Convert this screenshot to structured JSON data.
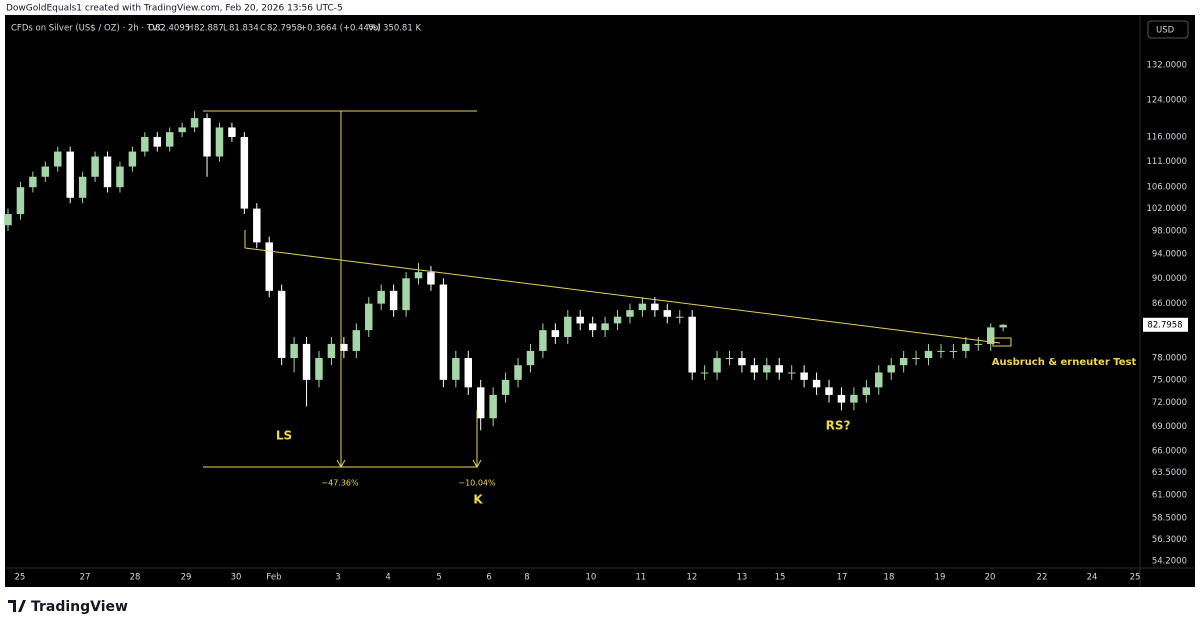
{
  "header": "DowGoldEquals1 created with TradingView.com, Feb 20, 2026 13:56 UTC-5",
  "footer": "TradingView",
  "chart_data": {
    "type": "candlestick",
    "title": "CFDs on Silver (US$ / OZ) · 2h · TVC",
    "legend_labels": {
      "open": "O",
      "high": "H",
      "low": "L",
      "close": "C",
      "volume": "Vol"
    },
    "change": "+0.3664 (+0.44%)",
    "volume": "350.81 K",
    "currency": "USD",
    "up_color": "#a5d6a7",
    "down_color": "#ffffff",
    "log_scale": true,
    "grid": false,
    "x": [
      0,
      1,
      2,
      3,
      4,
      5,
      6,
      7,
      8,
      9,
      10,
      11,
      12,
      13,
      14,
      15,
      16,
      17,
      18,
      19,
      20,
      21,
      22,
      23,
      24,
      25,
      26,
      27,
      28,
      29,
      30,
      31,
      32,
      33,
      34,
      35,
      36,
      37,
      38,
      39,
      40,
      41,
      42,
      43,
      44,
      45,
      46,
      47,
      48,
      49,
      50,
      51,
      52,
      53,
      54,
      55,
      56,
      57,
      58,
      59,
      60,
      61,
      62,
      63,
      64,
      65,
      66,
      67,
      68,
      69,
      70,
      71,
      72,
      73,
      74,
      75,
      76,
      77,
      78,
      79,
      80
    ],
    "open": [
      99,
      101,
      106,
      108,
      110,
      113,
      104,
      108,
      112,
      106,
      110,
      113,
      116,
      114,
      117,
      118,
      120,
      112,
      118,
      116,
      102,
      96,
      88,
      78,
      80,
      75,
      78,
      80,
      79,
      82,
      86,
      88,
      85,
      90,
      91,
      89,
      75,
      78,
      74,
      70,
      73,
      75,
      77,
      79,
      82,
      81,
      84,
      83,
      82,
      83,
      84,
      85,
      86,
      85,
      84,
      84,
      76,
      76,
      78,
      78,
      77,
      76,
      77,
      76,
      76,
      75,
      74,
      73,
      72,
      73,
      74,
      76,
      77,
      78,
      78,
      79,
      79,
      79,
      80,
      80,
      82.4095
    ],
    "high": [
      102,
      107,
      109,
      111,
      114,
      114,
      109,
      113,
      113,
      111,
      114,
      117,
      117,
      118,
      119,
      121.5,
      121,
      119,
      119,
      117,
      103,
      97,
      89,
      81,
      81,
      79,
      81,
      81,
      83,
      87,
      89,
      89,
      91,
      92.5,
      92,
      90,
      79,
      79,
      75,
      74,
      76,
      78,
      80,
      83,
      83,
      85,
      85,
      84,
      84,
      85,
      86,
      87,
      87,
      86,
      85,
      85,
      77,
      79,
      79,
      79,
      78,
      78,
      78,
      77,
      77,
      76,
      75,
      74,
      74,
      75,
      77,
      78,
      79,
      79,
      80,
      80,
      80,
      81,
      81,
      83,
      82.887
    ],
    "low": [
      98,
      100,
      105,
      107,
      109,
      103,
      103,
      107,
      105,
      105,
      109,
      112,
      113,
      113,
      116,
      117,
      108,
      111,
      115,
      101,
      95,
      87,
      77,
      76,
      71.5,
      74,
      77,
      78,
      78,
      81,
      85,
      84,
      84,
      89,
      88,
      74,
      74,
      73,
      68.5,
      69,
      72,
      74,
      76,
      78,
      80,
      80,
      82,
      81,
      81,
      82,
      83,
      84,
      84,
      83,
      83,
      75,
      75,
      75,
      77,
      76,
      75,
      75,
      75,
      75,
      74,
      73,
      72,
      71,
      71,
      72,
      73,
      75,
      76,
      77,
      77,
      78,
      78,
      78,
      79,
      79,
      81.834
    ],
    "close": [
      101,
      106,
      108,
      110,
      113,
      104,
      108,
      112,
      106,
      110,
      113,
      116,
      114,
      117,
      118,
      120,
      112,
      118,
      116,
      102,
      96,
      88,
      78,
      80,
      75,
      78,
      80,
      79,
      82,
      86,
      88,
      85,
      90,
      91,
      89,
      75,
      78,
      74,
      70,
      73,
      75,
      77,
      79,
      82,
      81,
      84,
      83,
      82,
      83,
      84,
      85,
      86,
      85,
      84,
      84,
      76,
      76,
      78,
      78,
      77,
      76,
      77,
      76,
      76,
      75,
      74,
      73,
      72,
      73,
      74,
      76,
      77,
      78,
      78,
      79,
      79,
      79,
      80,
      80,
      82.4095,
      82.7958
    ],
    "xlim": [
      0,
      91
    ],
    "xticks": [
      {
        "value": 0.96,
        "label": "25"
      },
      {
        "value": 6.19,
        "label": "27"
      },
      {
        "value": 10.21,
        "label": "28"
      },
      {
        "value": 14.31,
        "label": "29"
      },
      {
        "value": 18.33,
        "label": "30"
      },
      {
        "value": 21.38,
        "label": "Feb"
      },
      {
        "value": 26.53,
        "label": "3"
      },
      {
        "value": 30.55,
        "label": "4"
      },
      {
        "value": 34.65,
        "label": "5"
      },
      {
        "value": 38.67,
        "label": "6"
      },
      {
        "value": 41.72,
        "label": "8"
      },
      {
        "value": 46.86,
        "label": "10"
      },
      {
        "value": 50.88,
        "label": "11"
      },
      {
        "value": 54.98,
        "label": "12"
      },
      {
        "value": 59.0,
        "label": "13"
      },
      {
        "value": 62.06,
        "label": "15"
      },
      {
        "value": 67.04,
        "label": "17"
      },
      {
        "value": 70.82,
        "label": "18"
      },
      {
        "value": 74.92,
        "label": "19"
      },
      {
        "value": 78.94,
        "label": "20"
      },
      {
        "value": 83.12,
        "label": "22"
      },
      {
        "value": 87.14,
        "label": "24"
      },
      {
        "value": 90.6,
        "label": "25"
      }
    ],
    "ylim": [
      53.5,
      144.4
    ],
    "yticks": [
      {
        "value": 132,
        "label": "132.0000"
      },
      {
        "value": 124,
        "label": "124.0000"
      },
      {
        "value": 116,
        "label": "116.0000"
      },
      {
        "value": 111,
        "label": "111.0000"
      },
      {
        "value": 106,
        "label": "106.0000"
      },
      {
        "value": 102,
        "label": "102.0000"
      },
      {
        "value": 98,
        "label": "98.0000"
      },
      {
        "value": 94,
        "label": "94.0000"
      },
      {
        "value": 90,
        "label": "90.0000"
      },
      {
        "value": 86,
        "label": "86.0000"
      },
      {
        "value": 78,
        "label": "78.0000"
      },
      {
        "value": 75,
        "label": "75.0000"
      },
      {
        "value": 72,
        "label": "72.0000"
      },
      {
        "value": 69,
        "label": "69.0000"
      },
      {
        "value": 66,
        "label": "66.0000"
      },
      {
        "value": 63.5,
        "label": "63.5000"
      },
      {
        "value": 61,
        "label": "61.0000"
      },
      {
        "value": 58.5,
        "label": "58.5000"
      },
      {
        "value": 56.3,
        "label": "56.3000"
      },
      {
        "value": 54.2,
        "label": "54.2000"
      }
    ],
    "annotations": [
      "LS",
      "K",
      "RS?",
      "Ausbruch & erneuter Test",
      "−47.36%",
      "−10.04%"
    ]
  }
}
